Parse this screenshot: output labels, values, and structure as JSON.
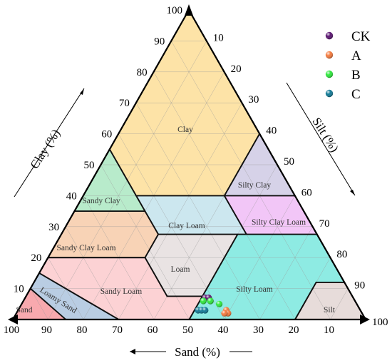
{
  "chart_data": {
    "type": "scatter",
    "subtype": "ternary-soil-texture-triangle",
    "title": "",
    "axes": {
      "clay": {
        "label": "Clay (%)",
        "ticks": [
          10,
          20,
          30,
          40,
          50,
          60,
          70,
          80,
          90,
          100
        ]
      },
      "silt": {
        "label": "Silt (%)",
        "ticks": [
          10,
          20,
          30,
          40,
          50,
          60,
          70,
          80,
          90,
          100
        ]
      },
      "sand": {
        "label": "Sand (%)",
        "ticks": [
          100,
          90,
          80,
          70,
          60,
          50,
          40,
          30,
          20,
          10
        ]
      }
    },
    "grid": true,
    "legend_position": "top-right",
    "zones": [
      {
        "name": "Clay",
        "color": "#FDE3A7"
      },
      {
        "name": "Sandy Clay",
        "color": "#B8EBCB"
      },
      {
        "name": "Silty Clay",
        "color": "#D6D2E8"
      },
      {
        "name": "Clay Loam",
        "color": "#CCE7EF"
      },
      {
        "name": "Silty Clay Loam",
        "color": "#F2C6F7"
      },
      {
        "name": "Sandy Clay Loam",
        "color": "#F8D3B6"
      },
      {
        "name": "Loam",
        "color": "#E9E3E3"
      },
      {
        "name": "Silty Loam",
        "color": "#8EEBE3"
      },
      {
        "name": "Sandy Loam",
        "color": "#FCD2D4"
      },
      {
        "name": "Loamy Sand",
        "color": "#B9CDE3"
      },
      {
        "name": "Sand",
        "color": "#F8A9AE"
      },
      {
        "name": "Silt",
        "color": "#E7DCDA"
      }
    ],
    "series": [
      {
        "name": "CK",
        "color": "#5A1570",
        "points": [
          {
            "sand": 42,
            "silt": 51,
            "clay": 7
          },
          {
            "sand": 41,
            "silt": 52,
            "clay": 7
          },
          {
            "sand": 41,
            "silt": 53,
            "clay": 6
          }
        ]
      },
      {
        "name": "A",
        "color": "#F47A3D",
        "points": [
          {
            "sand": 38,
            "silt": 59,
            "clay": 3
          },
          {
            "sand": 38,
            "silt": 60,
            "clay": 2
          },
          {
            "sand": 39,
            "silt": 59,
            "clay": 2
          }
        ]
      },
      {
        "name": "B",
        "color": "#2EE83C",
        "points": [
          {
            "sand": 43,
            "silt": 51,
            "clay": 6
          },
          {
            "sand": 41,
            "silt": 53,
            "clay": 6
          },
          {
            "sand": 39,
            "silt": 56,
            "clay": 5
          }
        ]
      },
      {
        "name": "C",
        "color": "#127A96",
        "points": [
          {
            "sand": 46,
            "silt": 51,
            "clay": 3
          },
          {
            "sand": 45,
            "silt": 52,
            "clay": 3
          },
          {
            "sand": 44,
            "silt": 53,
            "clay": 3
          }
        ]
      }
    ]
  }
}
